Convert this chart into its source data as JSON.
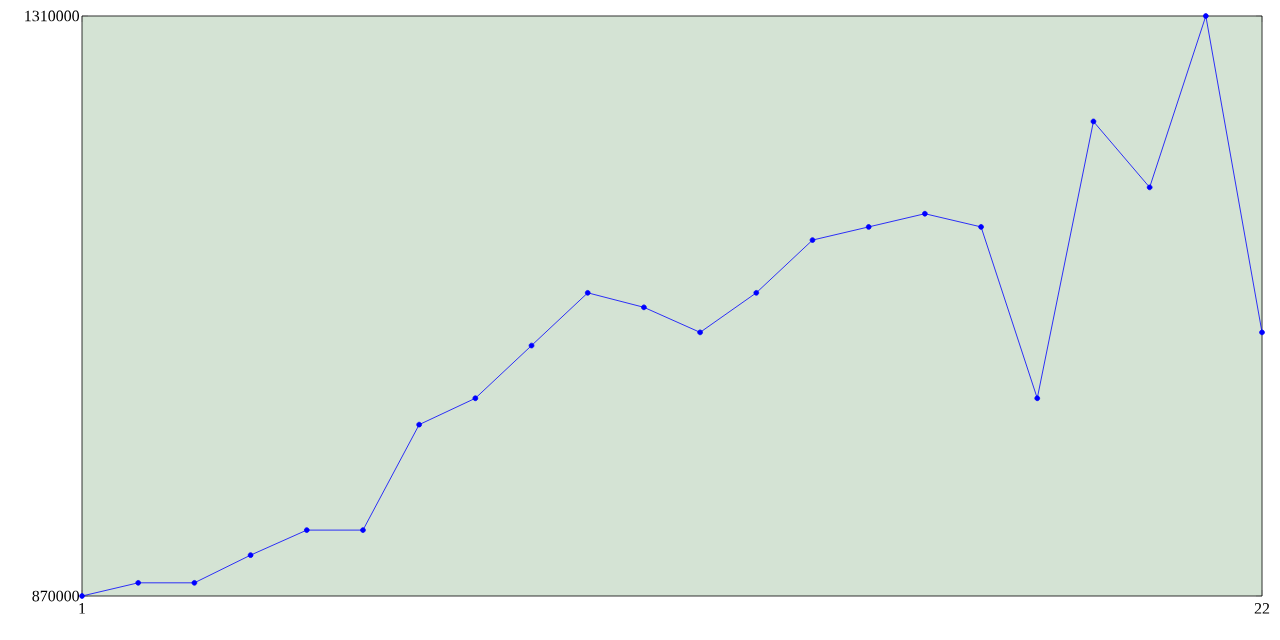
{
  "chart_data": {
    "type": "line",
    "x": [
      1,
      2,
      3,
      4,
      5,
      6,
      7,
      8,
      9,
      10,
      11,
      12,
      13,
      14,
      15,
      16,
      17,
      18,
      19,
      20,
      21,
      22
    ],
    "values": [
      870000,
      880000,
      880000,
      901000,
      920000,
      920000,
      1000000,
      1020000,
      1060000,
      1100000,
      1089000,
      1070000,
      1100000,
      1140000,
      1150000,
      1160000,
      1150000,
      1020000,
      1230000,
      1180000,
      1310000,
      1070000
    ],
    "color": "#0000ff",
    "xlim": [
      1,
      22
    ],
    "ylim": [
      870000,
      1310000
    ],
    "xticks": [
      1,
      22
    ],
    "yticks": [
      870000,
      1310000
    ],
    "marker": "circle",
    "line_style": "solid"
  }
}
